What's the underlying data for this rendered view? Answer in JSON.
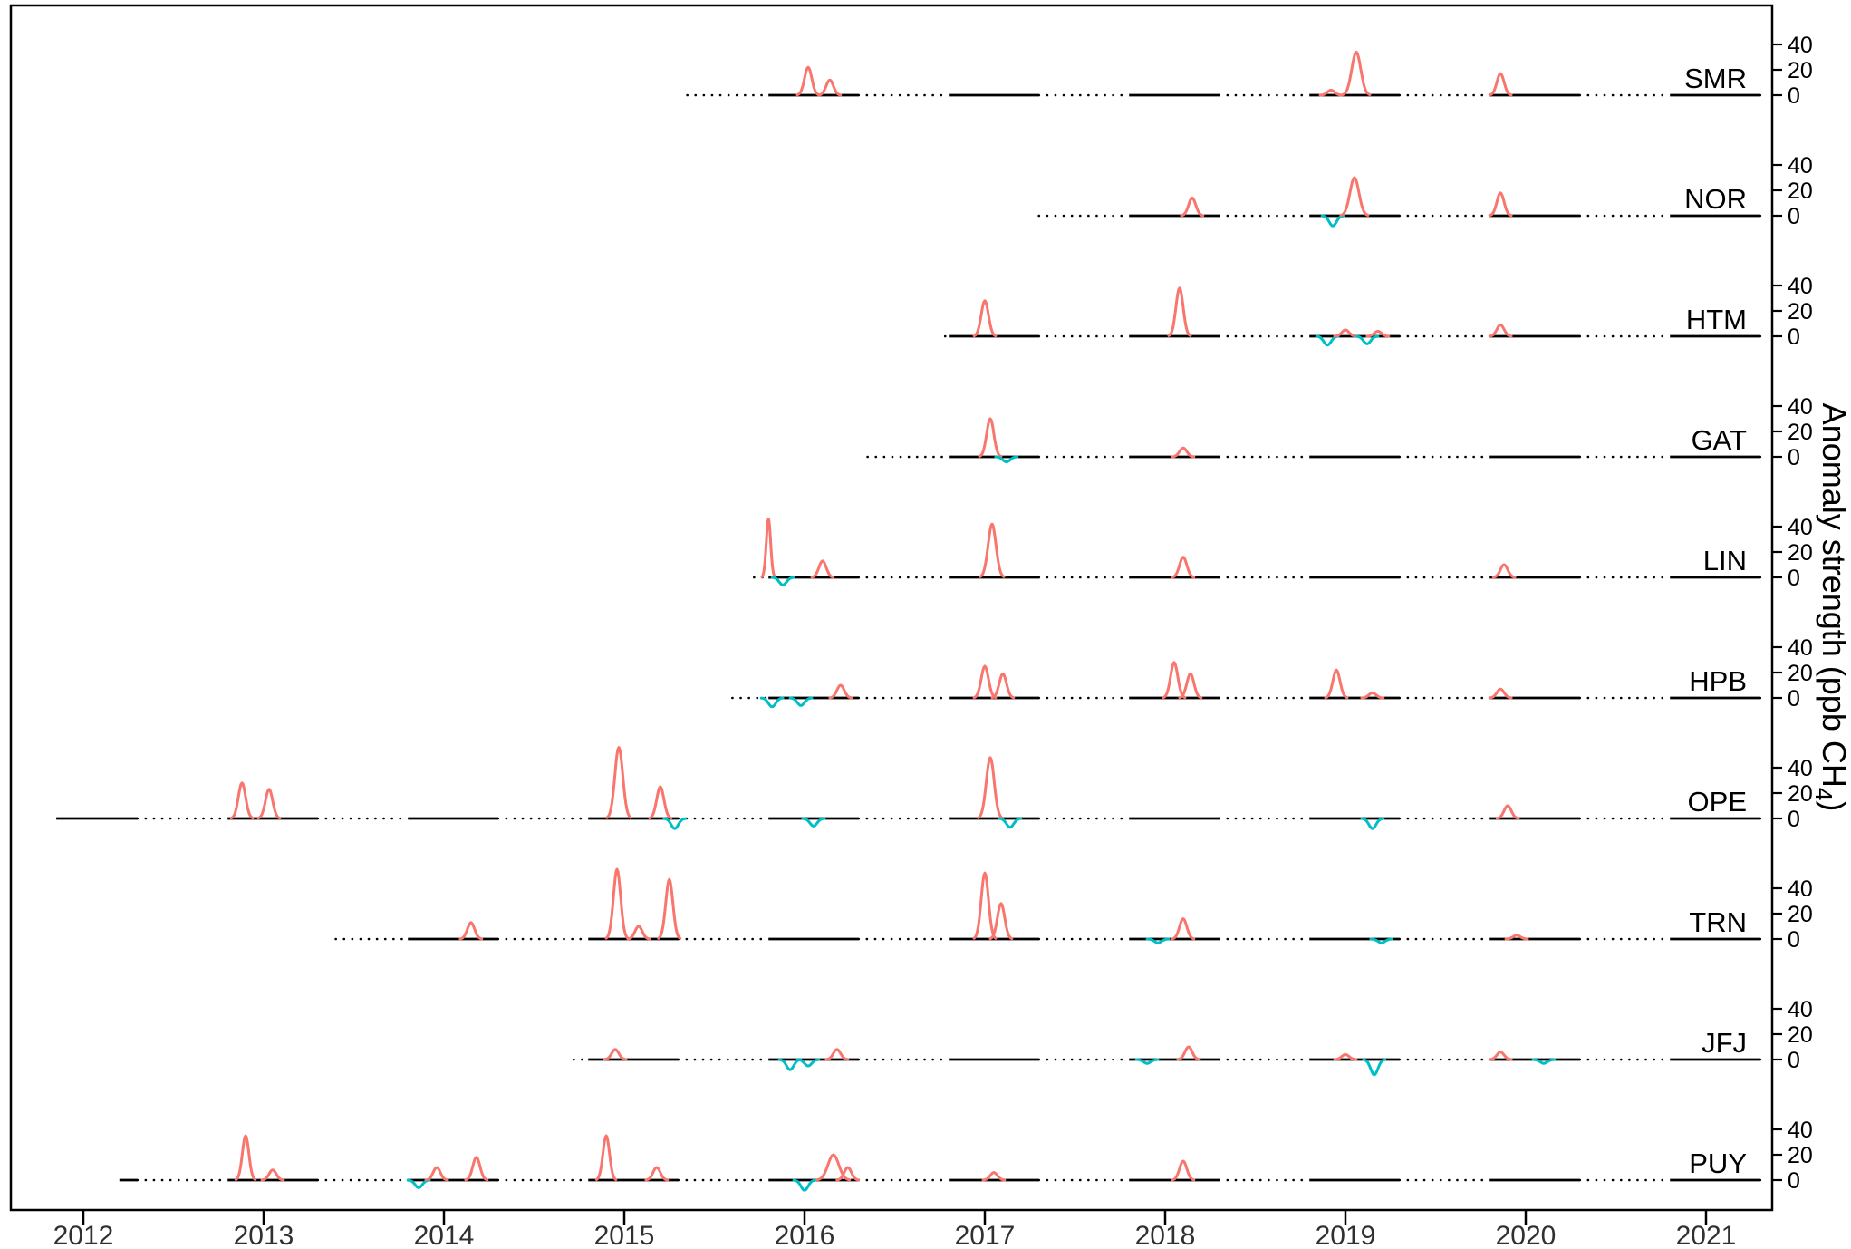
{
  "chart_data": {
    "type": "line",
    "title": "",
    "xlabel": "",
    "ylabel": "Anomaly strength (ppb CH4)",
    "legend": "none",
    "grid": false,
    "record_end": 2021.33,
    "x_axis": {
      "ticks": [
        2012,
        2013,
        2014,
        2015,
        2016,
        2017,
        2018,
        2019,
        2020,
        2021
      ]
    },
    "y_axis": {
      "row_ticks": [
        0,
        20,
        40
      ],
      "title": {
        "prefix": "Anomaly strength (ppb CH",
        "subscript": "4",
        "suffix": ")"
      }
    },
    "colors": {
      "positive": "#F8766D",
      "negative": "#00BFC4",
      "baseline": "#000000"
    },
    "line_style_note": "solid segments = winter evaluation periods, dotted = gaps",
    "stations": [
      {
        "label": "SMR",
        "record_start": 2015.35,
        "anomalies": [
          {
            "t": 2016.02,
            "ppb": 22
          },
          {
            "t": 2016.14,
            "ppb": 12
          },
          {
            "t": 2018.92,
            "ppb": 4
          },
          {
            "t": 2019.06,
            "ppb": 34,
            "w": 0.025
          },
          {
            "t": 2019.86,
            "ppb": 17
          }
        ]
      },
      {
        "label": "NOR",
        "record_start": 2017.3,
        "anomalies": [
          {
            "t": 2018.15,
            "ppb": 14
          },
          {
            "t": 2018.93,
            "ppb": -8
          },
          {
            "t": 2019.05,
            "ppb": 30,
            "w": 0.025
          },
          {
            "t": 2019.86,
            "ppb": 18
          }
        ]
      },
      {
        "label": "HTM",
        "record_start": 2016.78,
        "anomalies": [
          {
            "t": 2017.0,
            "ppb": 28
          },
          {
            "t": 2018.08,
            "ppb": 38
          },
          {
            "t": 2018.9,
            "ppb": -7
          },
          {
            "t": 2019.0,
            "ppb": 5
          },
          {
            "t": 2019.12,
            "ppb": -6
          },
          {
            "t": 2019.18,
            "ppb": 4
          },
          {
            "t": 2019.86,
            "ppb": 9
          }
        ]
      },
      {
        "label": "GAT",
        "record_start": 2016.35,
        "anomalies": [
          {
            "t": 2017.03,
            "ppb": 30
          },
          {
            "t": 2017.12,
            "ppb": -4
          },
          {
            "t": 2018.1,
            "ppb": 7
          }
        ]
      },
      {
        "label": "LIN",
        "record_start": 2015.72,
        "anomalies": [
          {
            "t": 2015.8,
            "ppb": 46,
            "w": 0.012
          },
          {
            "t": 2015.88,
            "ppb": -6
          },
          {
            "t": 2016.1,
            "ppb": 13
          },
          {
            "t": 2017.04,
            "ppb": 42,
            "w": 0.022
          },
          {
            "t": 2018.1,
            "ppb": 16
          },
          {
            "t": 2019.88,
            "ppb": 10
          }
        ]
      },
      {
        "label": "HPB",
        "record_start": 2015.6,
        "anomalies": [
          {
            "t": 2015.82,
            "ppb": -7
          },
          {
            "t": 2015.98,
            "ppb": -6
          },
          {
            "t": 2016.2,
            "ppb": 10
          },
          {
            "t": 2017.0,
            "ppb": 25
          },
          {
            "t": 2017.1,
            "ppb": 19
          },
          {
            "t": 2018.05,
            "ppb": 28
          },
          {
            "t": 2018.14,
            "ppb": 19
          },
          {
            "t": 2018.95,
            "ppb": 22
          },
          {
            "t": 2019.15,
            "ppb": 4
          },
          {
            "t": 2019.86,
            "ppb": 7
          }
        ]
      },
      {
        "label": "OPE",
        "record_start": 2011.85,
        "anomalies": [
          {
            "t": 2012.88,
            "ppb": 28
          },
          {
            "t": 2013.03,
            "ppb": 23
          },
          {
            "t": 2014.97,
            "ppb": 56,
            "w": 0.022
          },
          {
            "t": 2015.2,
            "ppb": 25
          },
          {
            "t": 2015.28,
            "ppb": -8
          },
          {
            "t": 2016.05,
            "ppb": -6
          },
          {
            "t": 2017.03,
            "ppb": 48,
            "w": 0.022
          },
          {
            "t": 2017.14,
            "ppb": -7
          },
          {
            "t": 2019.15,
            "ppb": -8
          },
          {
            "t": 2019.9,
            "ppb": 10
          }
        ]
      },
      {
        "label": "TRN",
        "record_start": 2013.4,
        "anomalies": [
          {
            "t": 2014.15,
            "ppb": 13
          },
          {
            "t": 2014.96,
            "ppb": 55,
            "w": 0.02
          },
          {
            "t": 2015.08,
            "ppb": 10
          },
          {
            "t": 2015.25,
            "ppb": 47,
            "w": 0.02
          },
          {
            "t": 2017.0,
            "ppb": 52,
            "w": 0.02
          },
          {
            "t": 2017.09,
            "ppb": 28
          },
          {
            "t": 2017.96,
            "ppb": -3
          },
          {
            "t": 2018.1,
            "ppb": 16
          },
          {
            "t": 2019.2,
            "ppb": -3
          },
          {
            "t": 2019.95,
            "ppb": 3
          }
        ]
      },
      {
        "label": "JFJ",
        "record_start": 2014.72,
        "anomalies": [
          {
            "t": 2014.95,
            "ppb": 8
          },
          {
            "t": 2015.92,
            "ppb": -8
          },
          {
            "t": 2016.02,
            "ppb": -5
          },
          {
            "t": 2016.18,
            "ppb": 8
          },
          {
            "t": 2017.9,
            "ppb": -3
          },
          {
            "t": 2018.13,
            "ppb": 10
          },
          {
            "t": 2019.0,
            "ppb": 4
          },
          {
            "t": 2019.16,
            "ppb": -12
          },
          {
            "t": 2019.86,
            "ppb": 6
          },
          {
            "t": 2020.1,
            "ppb": -3
          }
        ]
      },
      {
        "label": "PUY",
        "record_start": 2012.2,
        "anomalies": [
          {
            "t": 2012.9,
            "ppb": 35,
            "w": 0.018
          },
          {
            "t": 2013.05,
            "ppb": 8
          },
          {
            "t": 2013.86,
            "ppb": -6
          },
          {
            "t": 2013.96,
            "ppb": 10
          },
          {
            "t": 2014.18,
            "ppb": 18
          },
          {
            "t": 2014.9,
            "ppb": 35,
            "w": 0.018
          },
          {
            "t": 2015.18,
            "ppb": 10
          },
          {
            "t": 2016.0,
            "ppb": -8
          },
          {
            "t": 2016.16,
            "ppb": 20,
            "w": 0.03
          },
          {
            "t": 2016.24,
            "ppb": 10
          },
          {
            "t": 2017.05,
            "ppb": 6
          },
          {
            "t": 2018.1,
            "ppb": 15
          }
        ]
      }
    ]
  }
}
